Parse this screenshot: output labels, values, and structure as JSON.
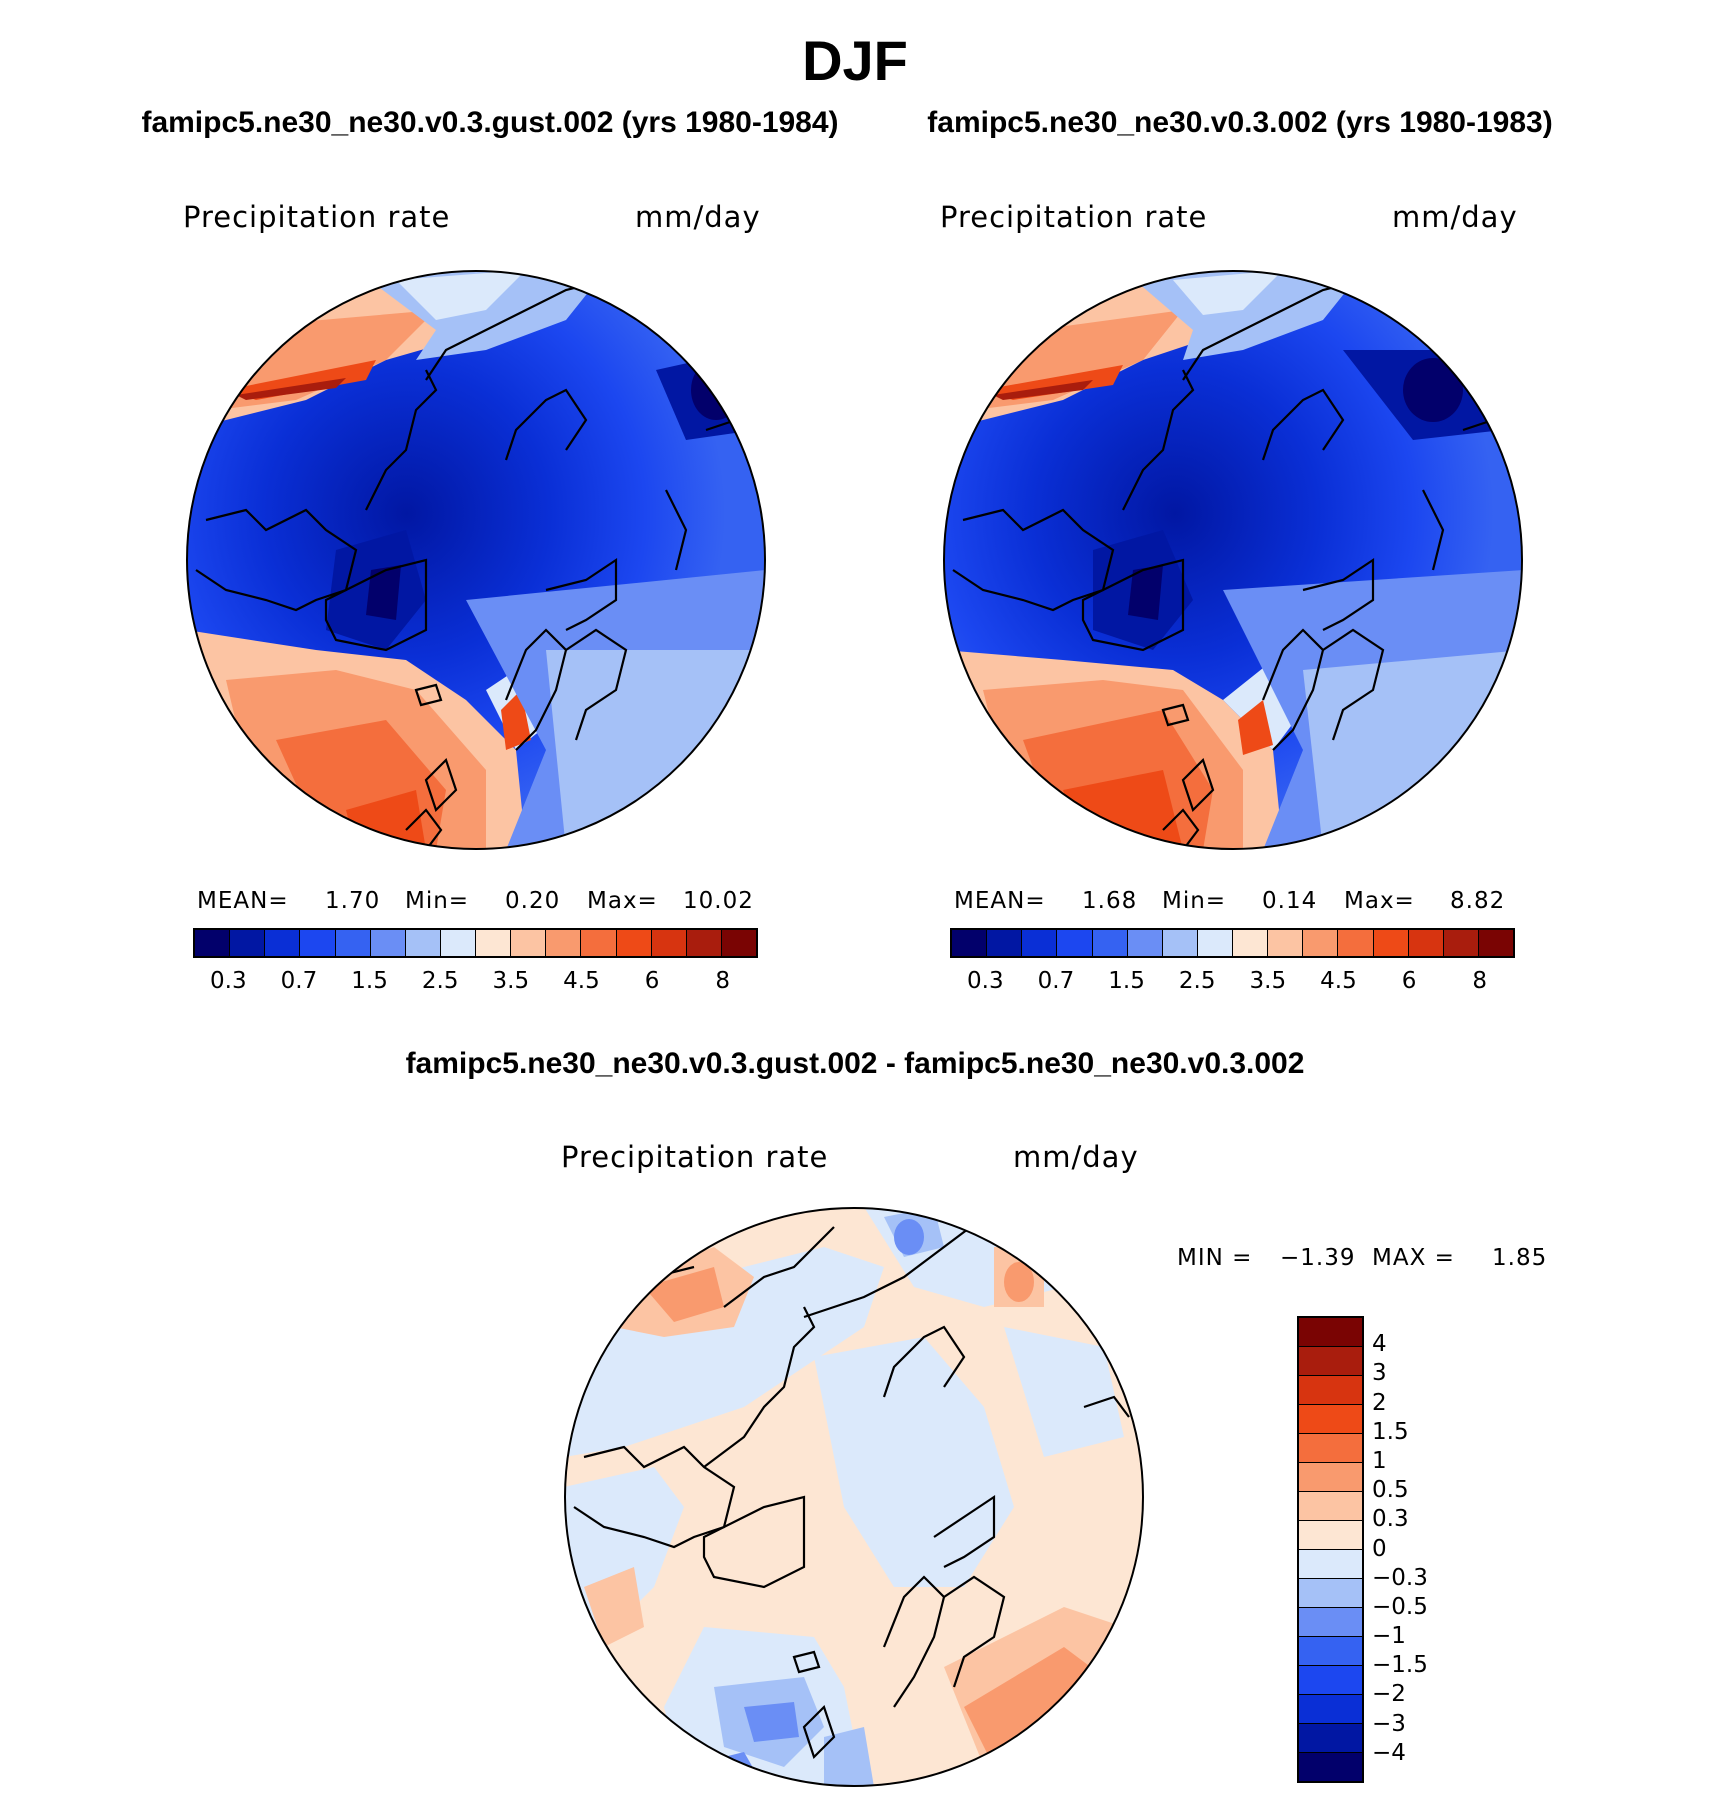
{
  "figure": {
    "title": "DJF",
    "run_a": "famipc5.ne30_ne30.v0.3.gust.002 (yrs 1980-1984)",
    "run_b": "famipc5.ne30_ne30.v0.3.002 (yrs 1980-1983)",
    "diff_title": "famipc5.ne30_ne30.v0.3.gust.002 - famipc5.ne30_ne30.v0.3.002"
  },
  "panels": {
    "a": {
      "variable": "Precipitation rate",
      "units": "mm/day",
      "mean_label": "MEAN=",
      "mean": "1.70",
      "min_label": "Min=",
      "min": "0.20",
      "max_label": "Max=",
      "max": "10.02"
    },
    "b": {
      "variable": "Precipitation rate",
      "units": "mm/day",
      "mean_label": "MEAN=",
      "mean": "1.68",
      "min_label": "Min=",
      "min": "0.14",
      "max_label": "Max=",
      "max": "8.82"
    },
    "diff": {
      "variable": "Precipitation rate",
      "units": "mm/day",
      "min_label": "MIN =",
      "min": "−1.39",
      "max_label": "MAX =",
      "max": "1.85"
    }
  },
  "colors": {
    "precip_scale": [
      "#02006b",
      "#0117a3",
      "#0a2fd6",
      "#1c47f0",
      "#3562f2",
      "#6a8ef5",
      "#a5c1f7",
      "#dbe9fb",
      "#fde6d3",
      "#fcc4a3",
      "#f99a6e",
      "#f46e3d",
      "#ee4a17",
      "#d73410",
      "#a91d0d",
      "#7a0403"
    ],
    "diff_scale": [
      "#7a0403",
      "#a91d0d",
      "#d73410",
      "#ee4a17",
      "#f46e3d",
      "#f99a6e",
      "#fcc4a3",
      "#fde6d3",
      "#dbe9fb",
      "#a5c1f7",
      "#6a8ef5",
      "#3562f2",
      "#1c47f0",
      "#0a2fd6",
      "#0117a3",
      "#02006b"
    ]
  },
  "chart_data": [
    {
      "type": "heatmap",
      "projection": "north polar stereographic",
      "title": "famipc5.ne30_ne30.v0.3.gust.002 (yrs 1980-1984)",
      "variable": "Precipitation rate",
      "units": "mm/day",
      "stats": {
        "mean": 1.7,
        "min": 0.2,
        "max": 10.02
      },
      "colorbar_ticks": [
        "0.3",
        "0.7",
        "1.5",
        "2.5",
        "3.5",
        "4.5",
        "6",
        "8"
      ]
    },
    {
      "type": "heatmap",
      "projection": "north polar stereographic",
      "title": "famipc5.ne30_ne30.v0.3.002 (yrs 1980-1983)",
      "variable": "Precipitation rate",
      "units": "mm/day",
      "stats": {
        "mean": 1.68,
        "min": 0.14,
        "max": 8.82
      },
      "colorbar_ticks": [
        "0.3",
        "0.7",
        "1.5",
        "2.5",
        "3.5",
        "4.5",
        "6",
        "8"
      ]
    },
    {
      "type": "heatmap",
      "projection": "north polar stereographic",
      "title": "famipc5.ne30_ne30.v0.3.gust.002 - famipc5.ne30_ne30.v0.3.002",
      "variable": "Precipitation rate",
      "units": "mm/day",
      "stats": {
        "min": -1.39,
        "max": 1.85
      },
      "colorbar_ticks": [
        "4",
        "3",
        "2",
        "1.5",
        "1",
        "0.5",
        "0.3",
        "0",
        "−0.3",
        "−0.5",
        "−1",
        "−1.5",
        "−2",
        "−3",
        "−4"
      ]
    }
  ]
}
